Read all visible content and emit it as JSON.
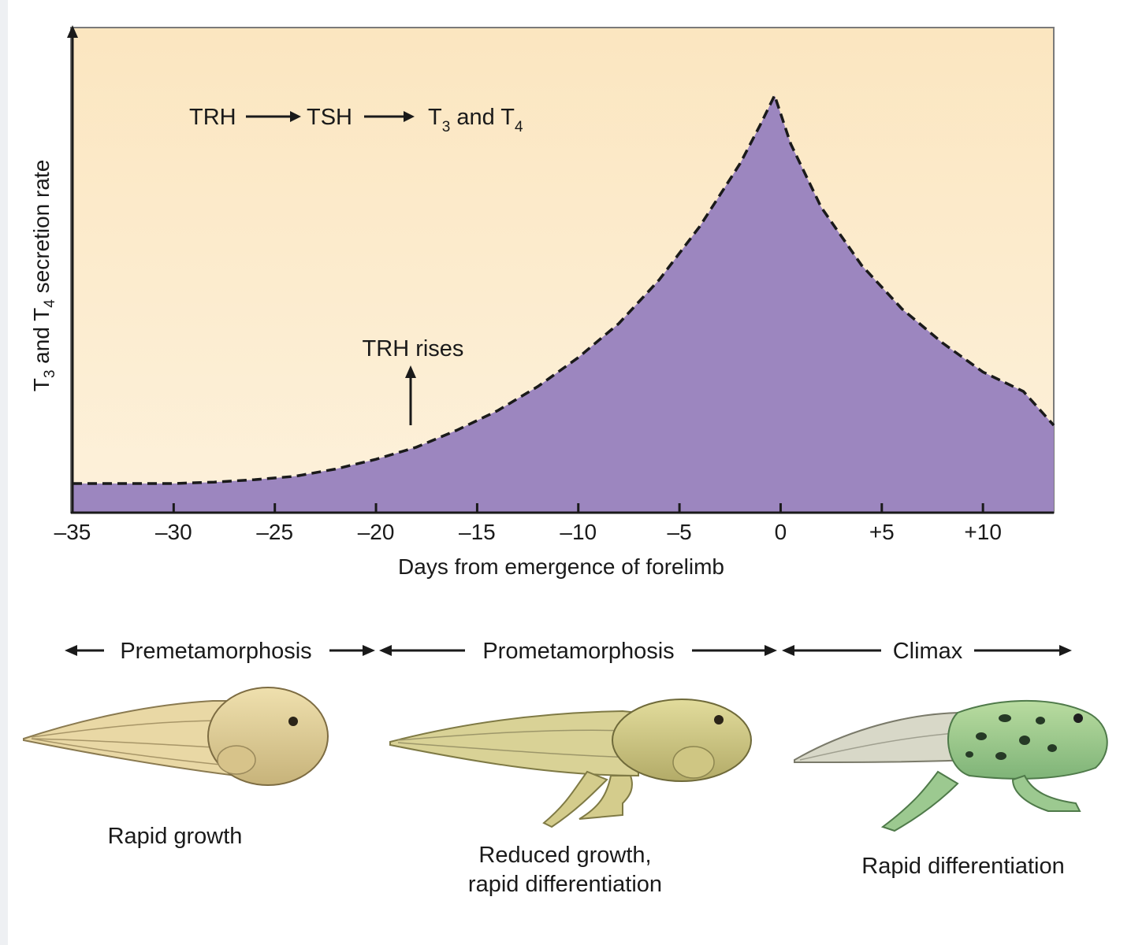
{
  "chart_data": {
    "type": "area",
    "title": "",
    "xlabel": "Days from emergence of forelimb",
    "ylabel_parts": [
      "T",
      "3",
      " and T",
      "4",
      " secretion rate"
    ],
    "xlim": [
      -35,
      13.5
    ],
    "ylim": [
      0,
      100
    ],
    "x_ticks": [
      -35,
      -30,
      -25,
      -20,
      -15,
      -10,
      -5,
      0,
      5,
      10
    ],
    "x_tick_labels": [
      "–35",
      "–30",
      "–25",
      "–20",
      "–15",
      "–10",
      "–5",
      "0",
      "+5",
      "+10"
    ],
    "grid": false,
    "series": [
      {
        "x": [
          -35,
          -32,
          -30,
          -28,
          -26,
          -24,
          -22,
          -20,
          -18,
          -16,
          -14,
          -12,
          -10,
          -8,
          -6,
          -4,
          -2,
          -1,
          -0.3,
          0.5,
          2,
          4,
          6,
          8,
          10,
          12,
          13.5
        ],
        "values": [
          6,
          6,
          6,
          6.3,
          6.8,
          7.5,
          9,
          11,
          13.5,
          17,
          21,
          26,
          32,
          39,
          48,
          59,
          72,
          80,
          86,
          76,
          63,
          51,
          42,
          35,
          29,
          25,
          18
        ]
      }
    ],
    "annotations": {
      "pathway": [
        "TRH",
        "TSH",
        "T",
        "3",
        " and T",
        "4"
      ],
      "event_label": "TRH rises",
      "event_x": -18.2
    },
    "colors": {
      "background": "#fbe9c7",
      "fill": "#9c86bf",
      "curve": "#1a1a1a"
    }
  },
  "stages": [
    {
      "name": "Premetamorphosis",
      "caption": [
        "Rapid growth"
      ]
    },
    {
      "name": "Prometamorphosis",
      "caption": [
        "Reduced growth,",
        "rapid differentiation"
      ]
    },
    {
      "name": "Climax",
      "caption": [
        "Rapid differentiation"
      ]
    }
  ]
}
